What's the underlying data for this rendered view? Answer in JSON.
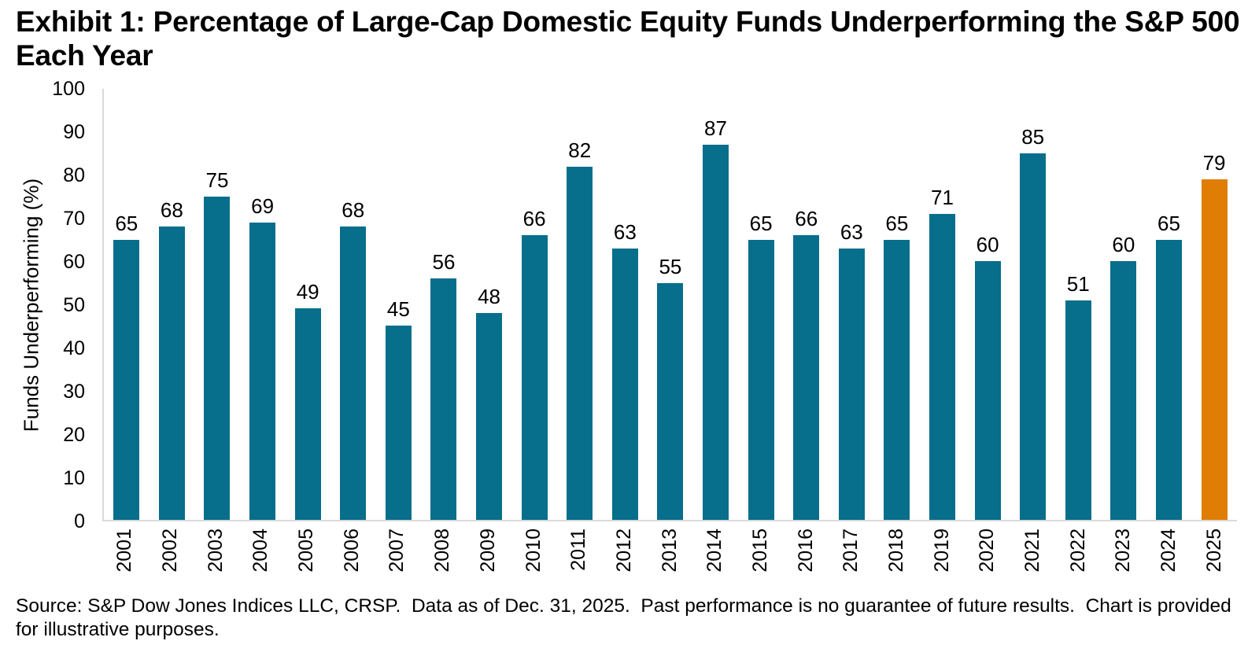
{
  "title": "Exhibit 1: Percentage of Large-Cap Domestic Equity Funds Underperforming the S&P 500 Each Year",
  "source_note": "Source: S&P Dow Jones Indices LLC, CRSP.  Data as of Dec. 31, 2025.  Past performance is no guarantee of future results.  Chart is provided for illustrative purposes.",
  "colors": {
    "bar_teal": "#076E8C",
    "bar_highlight_orange": "#E07D05",
    "axis_line_gray": "#D9D9D9",
    "text_black": "#000000",
    "background": "#FFFFFF"
  },
  "chart_data": {
    "type": "bar",
    "categories": [
      "2001",
      "2002",
      "2003",
      "2004",
      "2005",
      "2006",
      "2007",
      "2008",
      "2009",
      "2010",
      "2011",
      "2012",
      "2013",
      "2014",
      "2015",
      "2016",
      "2017",
      "2018",
      "2019",
      "2020",
      "2021",
      "2022",
      "2023",
      "2024",
      "2025"
    ],
    "values": [
      65,
      68,
      75,
      69,
      49,
      68,
      45,
      56,
      48,
      66,
      82,
      63,
      55,
      87,
      65,
      66,
      63,
      65,
      71,
      60,
      85,
      51,
      60,
      65,
      79
    ],
    "title": "",
    "xlabel": "",
    "ylabel": "Funds Underperforming (%)",
    "ylim": [
      0,
      100
    ],
    "yticks": [
      0,
      10,
      20,
      30,
      40,
      50,
      60,
      70,
      80,
      90,
      100
    ],
    "grid": false,
    "legend": "none",
    "value_labels": true,
    "highlight_index": 24,
    "notes": "Last bar (2025) highlighted in orange; all other bars teal; x labels rotated 90 degrees"
  }
}
